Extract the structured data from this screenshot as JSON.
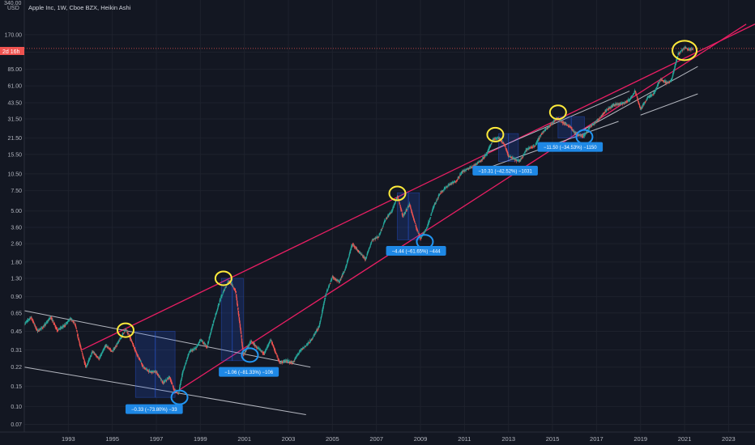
{
  "header": {
    "title": "Apple Inc, 1W, Cboe BZX, Heikin Ashi",
    "price_top": "340.00",
    "currency": "USD",
    "time_to_close": "2d 16h"
  },
  "colors": {
    "background": "#131722",
    "grid": "#1e222d",
    "up": "#26a69a",
    "down": "#ef5350",
    "trend_red": "#e91e63",
    "trend_white": "#d1d4dc",
    "yellow_mark": "#ffeb3b",
    "blue_mark": "#2196f3",
    "measure_fill": "#2962ff",
    "label_bg": "#1e88e5",
    "price_line": "#ef5350",
    "axis_text": "#b2b5be"
  },
  "chart_data": {
    "type": "candlestick",
    "style": "Heikin Ashi",
    "symbol": "Apple Inc",
    "interval": "1W",
    "exchange": "Cboe BZX",
    "scale": "log",
    "ylim": [
      0.06,
      340
    ],
    "xlim": [
      1991,
      2024.2
    ],
    "y_ticks": [
      "170.00",
      "120.00",
      "85.00",
      "61.00",
      "43.50",
      "31.50",
      "21.50",
      "15.50",
      "10.50",
      "7.50",
      "5.00",
      "3.60",
      "2.60",
      "1.80",
      "1.30",
      "0.90",
      "0.65",
      "0.45",
      "0.31",
      "0.22",
      "0.15",
      "0.10",
      "0.07"
    ],
    "x_ticks": [
      "1993",
      "1995",
      "1997",
      "1999",
      "2001",
      "2003",
      "2005",
      "2007",
      "2009",
      "2011",
      "2013",
      "2015",
      "2017",
      "2019",
      "2021",
      "2023"
    ],
    "current_price_label": "2d 16h",
    "current_price": 129,
    "price_path": [
      [
        1991.0,
        0.52
      ],
      [
        1991.3,
        0.6
      ],
      [
        1991.6,
        0.45
      ],
      [
        1991.9,
        0.5
      ],
      [
        1992.2,
        0.6
      ],
      [
        1992.5,
        0.46
      ],
      [
        1992.8,
        0.5
      ],
      [
        1993.1,
        0.58
      ],
      [
        1993.3,
        0.52
      ],
      [
        1993.6,
        0.3
      ],
      [
        1993.8,
        0.22
      ],
      [
        1994.1,
        0.3
      ],
      [
        1994.4,
        0.26
      ],
      [
        1994.7,
        0.34
      ],
      [
        1995.0,
        0.3
      ],
      [
        1995.3,
        0.37
      ],
      [
        1995.6,
        0.47
      ],
      [
        1995.8,
        0.4
      ],
      [
        1996.1,
        0.29
      ],
      [
        1996.4,
        0.22
      ],
      [
        1996.7,
        0.2
      ],
      [
        1997.0,
        0.2
      ],
      [
        1997.3,
        0.16
      ],
      [
        1997.6,
        0.18
      ],
      [
        1997.8,
        0.14
      ],
      [
        1998.0,
        0.13
      ],
      [
        1998.2,
        0.2
      ],
      [
        1998.5,
        0.3
      ],
      [
        1998.8,
        0.32
      ],
      [
        1999.0,
        0.38
      ],
      [
        1999.3,
        0.33
      ],
      [
        1999.6,
        0.55
      ],
      [
        1999.9,
        0.85
      ],
      [
        2000.1,
        1.05
      ],
      [
        2000.3,
        1.25
      ],
      [
        2000.6,
        1.0
      ],
      [
        2000.8,
        0.5
      ],
      [
        2000.95,
        0.28
      ],
      [
        2001.3,
        0.37
      ],
      [
        2001.6,
        0.32
      ],
      [
        2001.9,
        0.29
      ],
      [
        2002.2,
        0.38
      ],
      [
        2002.4,
        0.3
      ],
      [
        2002.6,
        0.24
      ],
      [
        2002.9,
        0.25
      ],
      [
        2003.2,
        0.24
      ],
      [
        2003.5,
        0.3
      ],
      [
        2003.8,
        0.34
      ],
      [
        2004.0,
        0.37
      ],
      [
        2004.4,
        0.5
      ],
      [
        2004.7,
        0.95
      ],
      [
        2005.0,
        1.35
      ],
      [
        2005.3,
        1.2
      ],
      [
        2005.6,
        1.6
      ],
      [
        2005.9,
        2.6
      ],
      [
        2006.2,
        2.2
      ],
      [
        2006.5,
        1.9
      ],
      [
        2006.8,
        2.8
      ],
      [
        2007.1,
        3.0
      ],
      [
        2007.4,
        4.2
      ],
      [
        2007.7,
        5.0
      ],
      [
        2007.95,
        6.7
      ],
      [
        2008.2,
        4.5
      ],
      [
        2008.5,
        5.7
      ],
      [
        2008.8,
        3.6
      ],
      [
        2009.0,
        2.9
      ],
      [
        2009.3,
        3.6
      ],
      [
        2009.6,
        5.5
      ],
      [
        2009.9,
        7.2
      ],
      [
        2010.3,
        8.5
      ],
      [
        2010.6,
        9.0
      ],
      [
        2010.9,
        11.0
      ],
      [
        2011.3,
        12.0
      ],
      [
        2011.7,
        13.5
      ],
      [
        2012.0,
        15.5
      ],
      [
        2012.3,
        21.0
      ],
      [
        2012.55,
        21.5
      ],
      [
        2012.8,
        19.0
      ],
      [
        2013.0,
        15.0
      ],
      [
        2013.3,
        14.0
      ],
      [
        2013.5,
        13.5
      ],
      [
        2013.8,
        17.0
      ],
      [
        2014.2,
        18.5
      ],
      [
        2014.5,
        23.5
      ],
      [
        2014.9,
        28.0
      ],
      [
        2015.2,
        32.0
      ],
      [
        2015.5,
        29.0
      ],
      [
        2015.8,
        27.0
      ],
      [
        2016.0,
        24.0
      ],
      [
        2016.4,
        22.0
      ],
      [
        2016.7,
        27.0
      ],
      [
        2017.0,
        30.0
      ],
      [
        2017.4,
        37.0
      ],
      [
        2017.8,
        42.0
      ],
      [
        2018.2,
        43.0
      ],
      [
        2018.5,
        46.0
      ],
      [
        2018.75,
        55.0
      ],
      [
        2019.0,
        38.0
      ],
      [
        2019.3,
        48.0
      ],
      [
        2019.6,
        52.0
      ],
      [
        2019.9,
        70.0
      ],
      [
        2020.2,
        65.0
      ],
      [
        2020.4,
        68.0
      ],
      [
        2020.7,
        115.0
      ],
      [
        2021.0,
        132.0
      ],
      [
        2021.2,
        126.0
      ],
      [
        2021.4,
        128.0
      ]
    ],
    "trendlines": [
      {
        "color": "red",
        "from": [
          1993.6,
          0.31
        ],
        "to": [
          2024.2,
          210
        ]
      },
      {
        "color": "red",
        "from": [
          1997.8,
          0.13
        ],
        "to": [
          2023.8,
          210
        ]
      },
      {
        "color": "white",
        "from": [
          1991.0,
          0.68
        ],
        "to": [
          2004.0,
          0.22
        ]
      },
      {
        "color": "white",
        "from": [
          1991.0,
          0.22
        ],
        "to": [
          2003.8,
          0.085
        ]
      },
      {
        "color": "white",
        "from": [
          2012.0,
          16.0
        ],
        "to": [
          2018.5,
          55.0
        ]
      },
      {
        "color": "white",
        "from": [
          2011.6,
          11.0
        ],
        "to": [
          2018.0,
          30.0
        ]
      },
      {
        "color": "white",
        "from": [
          2016.0,
          23.0
        ],
        "to": [
          2021.6,
          90.0
        ]
      },
      {
        "color": "white",
        "from": [
          2019.0,
          34.0
        ],
        "to": [
          2021.6,
          52.0
        ]
      }
    ],
    "tops_marked": [
      [
        1995.6,
        0.46
      ],
      [
        2000.05,
        1.3
      ],
      [
        2007.95,
        7.1
      ],
      [
        2012.4,
        23.0
      ],
      [
        2015.25,
        36.0
      ],
      [
        2021.0,
        124.0
      ]
    ],
    "bottoms_marked": [
      [
        1998.05,
        0.12
      ],
      [
        2001.25,
        0.28
      ],
      [
        2009.2,
        2.7
      ],
      [
        2016.45,
        22.0
      ]
    ],
    "drawdowns": [
      {
        "label": "−0.33 (−73.80%) −33",
        "x_from": 1996.05,
        "x_to": 1997.85,
        "y_top": 0.45,
        "y_bottom": 0.12,
        "label_at": [
          1996.9,
          0.095
        ]
      },
      {
        "label": "−1.06 (−81.33%) −106",
        "x_from": 1999.95,
        "x_to": 2000.95,
        "y_top": 1.3,
        "y_bottom": 0.25,
        "label_at": [
          2001.2,
          0.2
        ]
      },
      {
        "label": "−4.44 (−61.65%) −444",
        "x_from": 2007.95,
        "x_to": 2008.95,
        "y_top": 7.2,
        "y_bottom": 2.8,
        "label_at": [
          2008.8,
          2.25
        ]
      },
      {
        "label": "−10.31 (−42.52%) −1031",
        "x_from": 2012.55,
        "x_to": 2013.45,
        "y_top": 23.5,
        "y_bottom": 13.5,
        "label_at": [
          2012.85,
          11.2
        ]
      },
      {
        "label": "−11.50 (−34.53%) −1150",
        "x_from": 2015.25,
        "x_to": 2016.45,
        "y_top": 33.0,
        "y_bottom": 21.5,
        "label_at": [
          2015.8,
          18.0
        ]
      }
    ]
  }
}
